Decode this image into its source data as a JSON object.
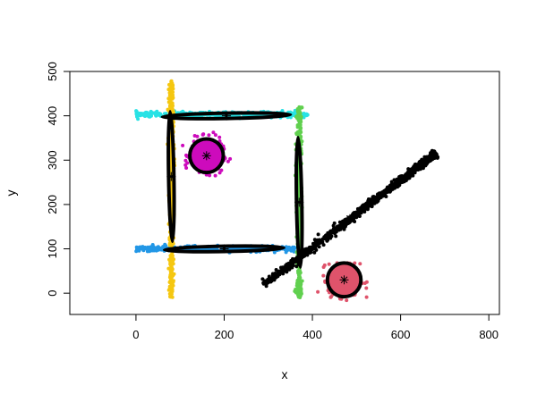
{
  "chart_data": {
    "type": "scatter",
    "title": "",
    "xlabel": "x",
    "ylabel": "y",
    "xlim": [
      -150,
      824
    ],
    "ylim": [
      -48,
      500
    ],
    "xticks": [
      0,
      200,
      400,
      600,
      800
    ],
    "yticks": [
      0,
      100,
      200,
      300,
      400,
      500
    ],
    "grid": false,
    "legend": "none",
    "clusters": [
      {
        "color": "#28E2E5",
        "kind": "hline",
        "x_range": [
          0,
          390
        ],
        "y": 403,
        "sd_y": 3,
        "n": 400,
        "center": [
          205,
          400
        ],
        "ellipse": {
          "rx": 145,
          "ry": 6,
          "angle_deg": -1
        }
      },
      {
        "color": "#2297E6",
        "kind": "hline",
        "x_range": [
          0,
          360
        ],
        "y": 100,
        "sd_y": 3,
        "n": 400,
        "center": [
          200,
          100
        ],
        "ellipse": {
          "rx": 135,
          "ry": 6,
          "angle_deg": -1
        }
      },
      {
        "color": "#F5C710",
        "kind": "vline",
        "y_range": [
          -10,
          480
        ],
        "x": 80,
        "sd_x": 3,
        "n": 400,
        "center": [
          80,
          263
        ],
        "ellipse": {
          "rx": 6,
          "ry": 146,
          "angle_deg": -1
        }
      },
      {
        "color": "#61D04F",
        "kind": "vline",
        "y_range": [
          -10,
          420
        ],
        "x": 370,
        "sd_x": 3,
        "n": 400,
        "center": [
          370,
          205
        ],
        "ellipse": {
          "rx": 6,
          "ry": 146,
          "angle_deg": -1
        }
      },
      {
        "color": "#CD0BBC",
        "kind": "blob",
        "center": [
          160,
          310
        ],
        "sd": 18,
        "n": 300,
        "ellipse": {
          "rx": 38,
          "ry": 38,
          "angle_deg": 0
        }
      },
      {
        "color": "#DF536B",
        "kind": "blob",
        "center": [
          472,
          30
        ],
        "sd": 18,
        "n": 300,
        "ellipse": {
          "rx": 38,
          "ry": 38,
          "angle_deg": 0
        }
      },
      {
        "color": "#000000",
        "kind": "diag",
        "from": [
          290,
          20
        ],
        "to": [
          680,
          315
        ],
        "sd_perp": 4,
        "n": 900,
        "center": [
          485,
          168
        ],
        "ellipse": null
      }
    ]
  }
}
